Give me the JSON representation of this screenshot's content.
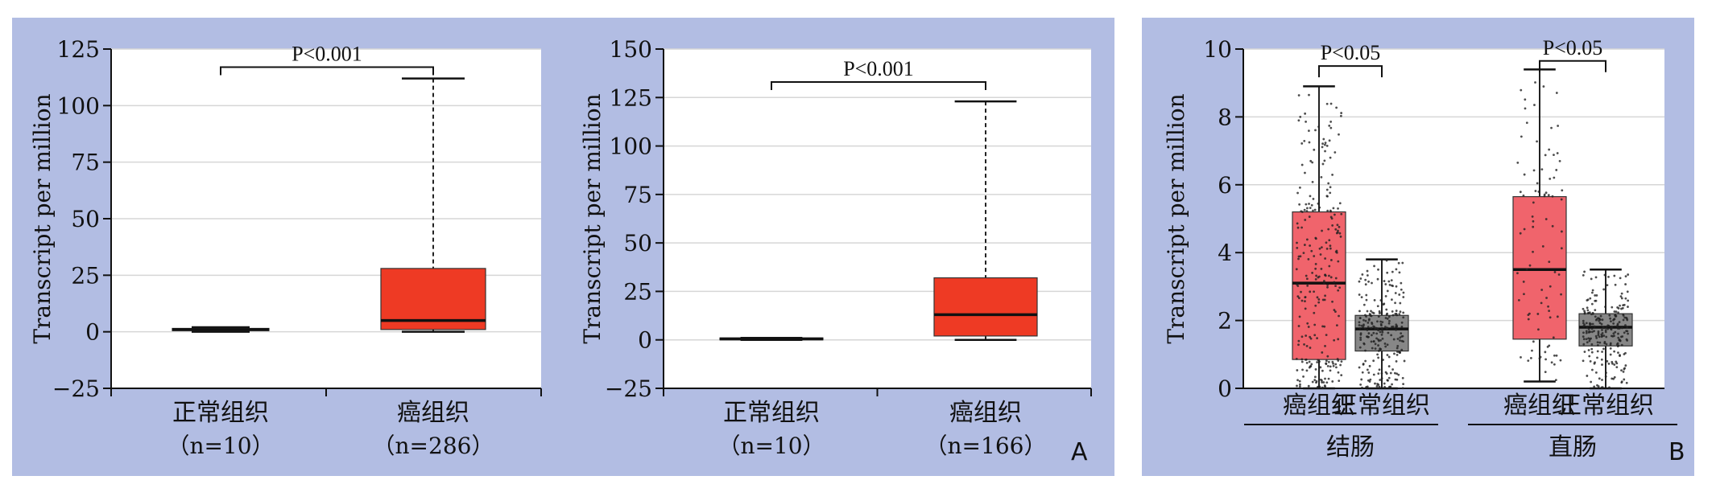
{
  "panel_labels": {
    "a": "A",
    "b": "B"
  },
  "chart_data": [
    {
      "type": "box",
      "ylabel": "Transcript per million",
      "ylim": [
        -25,
        125
      ],
      "yticks": [
        -25,
        0,
        25,
        50,
        75,
        100,
        125
      ],
      "grid": true,
      "categories": [
        {
          "name": "正常组织",
          "n": "（n=10）",
          "min": 0,
          "q1": 0.5,
          "median": 1,
          "q3": 1.5,
          "max": 2,
          "color": "#ee3a24"
        },
        {
          "name": "癌组织",
          "n": "（n=286）",
          "min": 0,
          "q1": 1,
          "median": 5,
          "q3": 28,
          "max": 112,
          "color": "#ee3a24"
        }
      ],
      "annotation": "P<0.001"
    },
    {
      "type": "box",
      "ylabel": "Transcript per million",
      "ylim": [
        -25,
        150
      ],
      "yticks": [
        -25,
        0,
        25,
        50,
        75,
        100,
        125,
        150
      ],
      "grid": true,
      "categories": [
        {
          "name": "正常组织",
          "n": "（n=10）",
          "min": 0,
          "q1": 0,
          "median": 0.5,
          "q3": 1,
          "max": 1,
          "color": "#ee3a24"
        },
        {
          "name": "癌组织",
          "n": "（n=166）",
          "min": 0,
          "q1": 2,
          "median": 13,
          "q3": 32,
          "max": 123,
          "color": "#ee3a24"
        }
      ],
      "annotation": "P<0.001"
    },
    {
      "type": "box",
      "ylabel": "Transcript per million",
      "ylim": [
        0,
        10
      ],
      "yticks": [
        0,
        2,
        4,
        6,
        8,
        10
      ],
      "grid": true,
      "groups": [
        {
          "name": "结肠",
          "annotation": "P<0.05",
          "boxes": [
            {
              "name": "癌组织",
              "min": 0,
              "q1": 0.85,
              "median": 3.1,
              "q3": 5.2,
              "max": 8.9,
              "color": "#f0646c"
            },
            {
              "name": "正常组织",
              "min": 0,
              "q1": 1.1,
              "median": 1.75,
              "q3": 2.15,
              "max": 3.8,
              "color": "#878787"
            }
          ]
        },
        {
          "name": "直肠",
          "annotation": "P<0.05",
          "boxes": [
            {
              "name": "癌组织",
              "min": 0.2,
              "q1": 1.45,
              "median": 3.5,
              "q3": 5.65,
              "max": 9.4,
              "color": "#f0646c"
            },
            {
              "name": "正常组织",
              "min": 0,
              "q1": 1.25,
              "median": 1.8,
              "q3": 2.2,
              "max": 3.5,
              "color": "#878787"
            }
          ]
        }
      ]
    }
  ]
}
